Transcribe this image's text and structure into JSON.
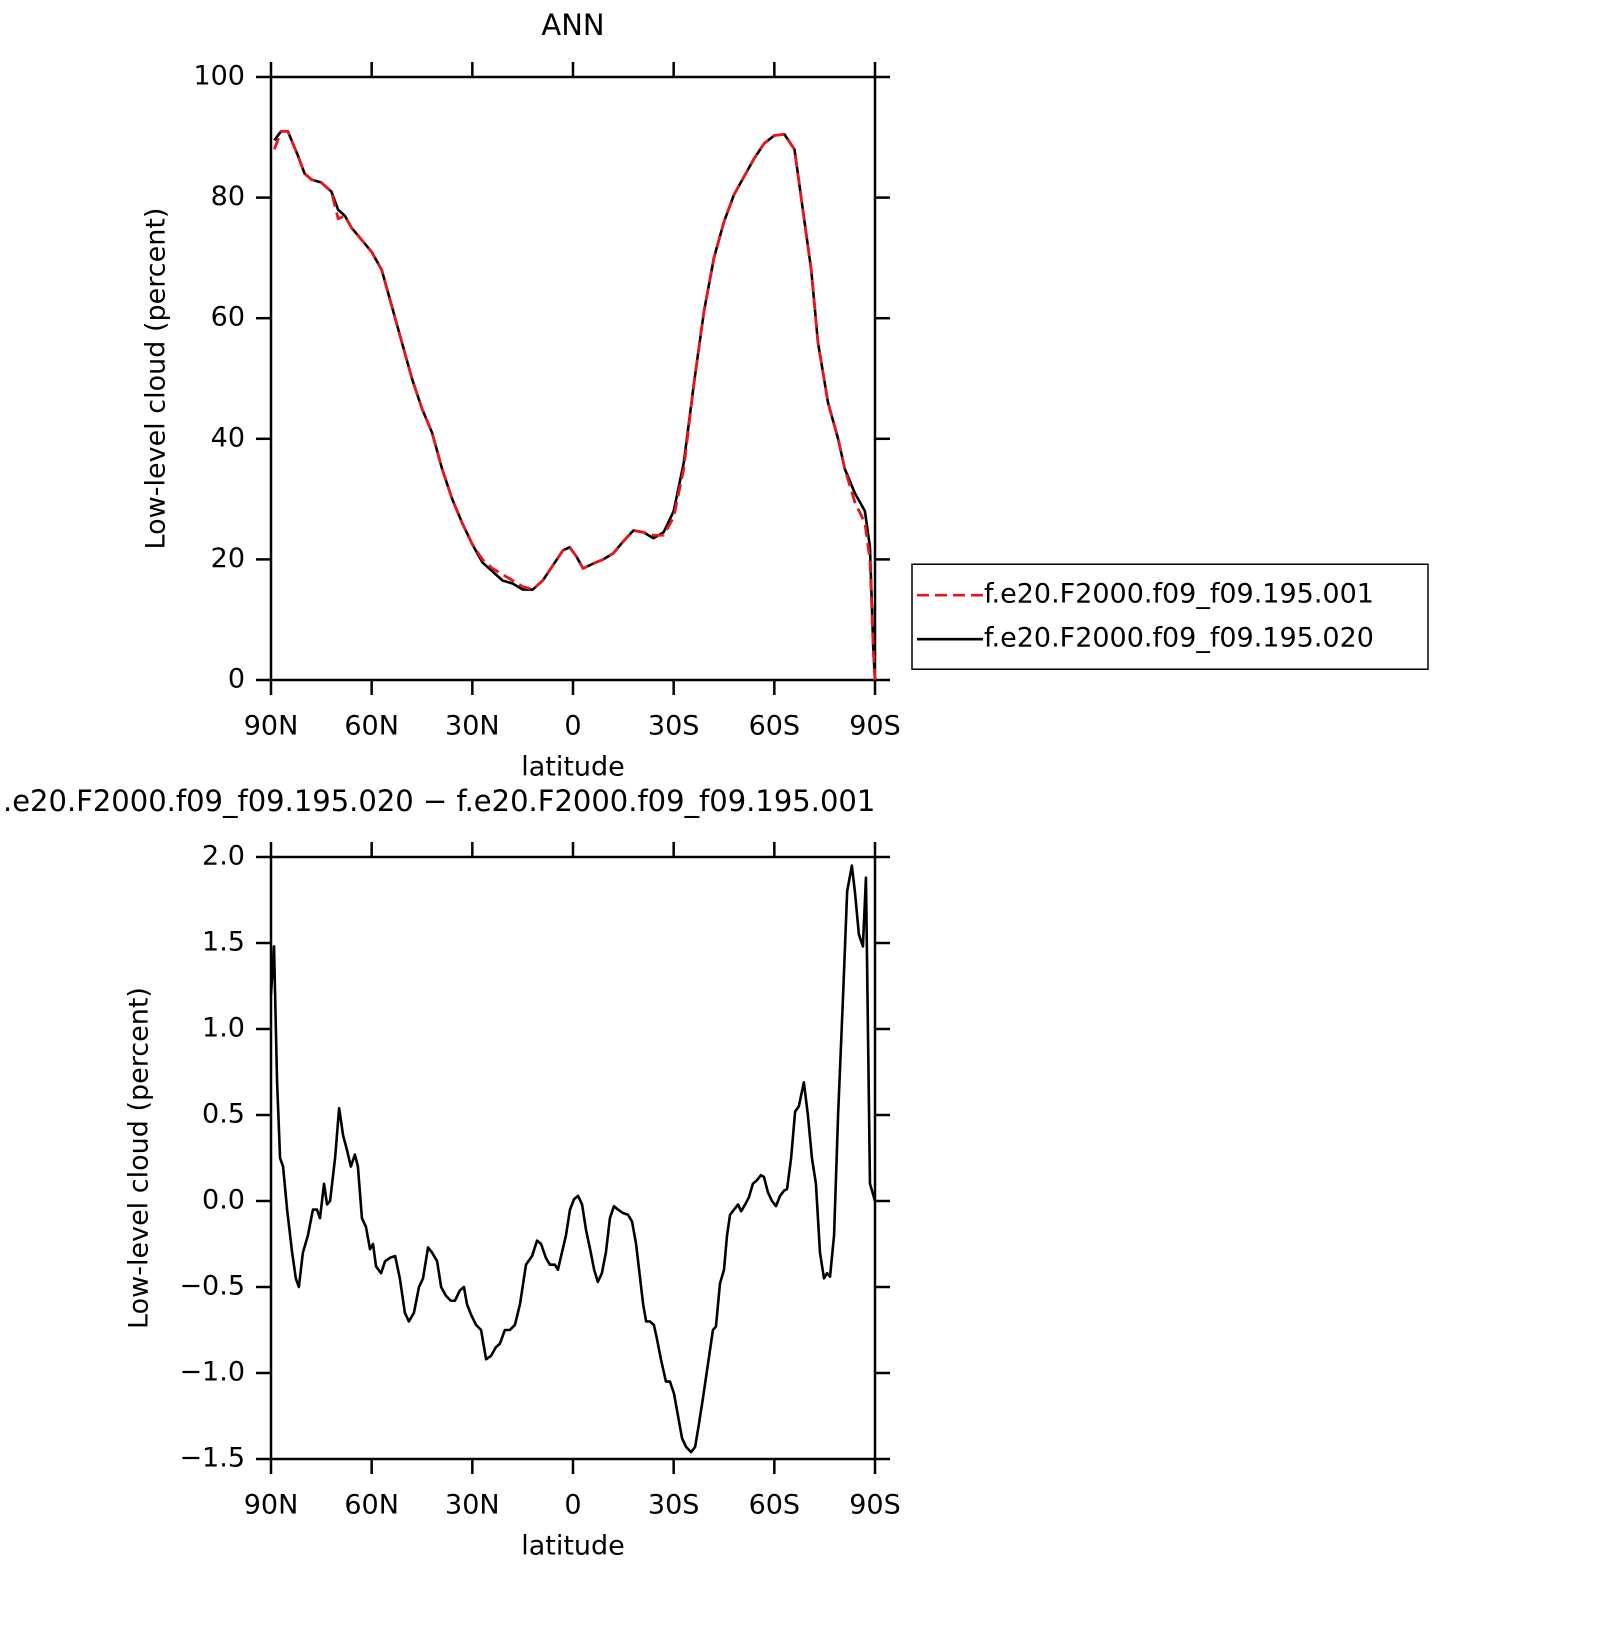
{
  "chart_data": [
    {
      "type": "line",
      "title": "ANN",
      "xlabel": "latitude",
      "ylabel": "Low-level cloud (percent)",
      "xlim": [
        90,
        -90
      ],
      "xticks": [
        {
          "value": 90,
          "label": "90N"
        },
        {
          "value": 60,
          "label": "60N"
        },
        {
          "value": 30,
          "label": "30N"
        },
        0,
        {
          "value": -30,
          "label": "30S"
        },
        {
          "value": -60,
          "label": "60S"
        },
        {
          "value": -90,
          "label": "90S"
        }
      ],
      "ylim": [
        0,
        100
      ],
      "yticks": [
        0,
        20,
        40,
        60,
        80,
        100
      ],
      "legend": "right",
      "x": [
        89,
        87,
        85,
        82,
        80,
        78,
        75,
        72,
        70,
        68,
        66,
        63,
        60,
        57,
        54,
        51,
        48,
        45,
        42,
        39,
        36,
        33,
        30,
        27,
        24,
        21,
        18,
        15,
        12,
        9,
        6,
        3,
        1,
        -1,
        -3,
        -6,
        -9,
        -12,
        -15,
        -18,
        -21,
        -24,
        -27,
        -30,
        -33,
        -36,
        -39,
        -42,
        -45,
        -48,
        -51,
        -54,
        -57,
        -60,
        -63,
        -66,
        -69,
        -71,
        -73,
        -76,
        -79,
        -81,
        -84,
        -87,
        -88.5,
        -89.5,
        -90
      ],
      "series": [
        {
          "name": "f.e20.F2000.f09_f09.195.001",
          "color": "#e8161b",
          "dashed": true,
          "values": [
            88,
            91,
            91,
            87,
            84,
            83,
            82.5,
            81,
            76.5,
            77,
            75,
            73,
            71,
            68,
            62,
            56,
            50,
            45,
            41,
            35,
            30,
            26,
            22.5,
            20,
            18.5,
            17.5,
            16.5,
            15.5,
            15,
            16.5,
            19,
            21.5,
            22,
            20.5,
            18.5,
            19.3,
            20,
            21,
            23,
            24.8,
            24.5,
            24,
            24,
            27,
            35,
            49,
            61,
            70,
            76,
            80.5,
            83.5,
            86.5,
            89,
            90.3,
            90.5,
            88,
            76,
            68,
            56,
            46,
            40,
            35,
            29.5,
            26,
            20,
            5,
            0
          ]
        },
        {
          "name": "f.e20.F2000.f09_f09.195.020",
          "color": "#000000",
          "dashed": false,
          "values": [
            89.5,
            91,
            91,
            87,
            84,
            83,
            82.5,
            81,
            78,
            77,
            75,
            73,
            71,
            68,
            62,
            56,
            50,
            45,
            41,
            35,
            30,
            26,
            22.5,
            19.5,
            18,
            16.5,
            16,
            15,
            15,
            16.5,
            19,
            21.5,
            22,
            20.5,
            18.5,
            19.3,
            20,
            21,
            23,
            24.8,
            24.5,
            23.5,
            24.5,
            28,
            36,
            49,
            61,
            70,
            76,
            80.5,
            83.5,
            86.5,
            89,
            90.3,
            90.5,
            88,
            76,
            68,
            56,
            46,
            40,
            35,
            31,
            28,
            22,
            5,
            0
          ]
        }
      ]
    },
    {
      "type": "line",
      "title": ".e20.F2000.f09_f09.195.020 − f.e20.F2000.f09_f09.195.001",
      "xlabel": "latitude",
      "ylabel": "Low-level cloud (percent)",
      "xlim": [
        90,
        -90
      ],
      "xticks": [
        {
          "value": 90,
          "label": "90N"
        },
        {
          "value": 60,
          "label": "60N"
        },
        {
          "value": 30,
          "label": "30N"
        },
        0,
        {
          "value": -30,
          "label": "30S"
        },
        {
          "value": -60,
          "label": "60S"
        },
        {
          "value": -90,
          "label": "90S"
        }
      ],
      "ylim": [
        -1.5,
        2.0
      ],
      "yticks": [
        {
          "value": -1.5,
          "label": "−1.5"
        },
        {
          "value": -1.0,
          "label": "−1.0"
        },
        {
          "value": -0.5,
          "label": "−0.5"
        },
        {
          "value": 0,
          "label": "0.0"
        },
        0.5,
        {
          "value": 1.0,
          "label": "1.0"
        },
        1.5,
        {
          "value": 2.0,
          "label": "2.0"
        }
      ],
      "x": [
        90,
        89.1,
        88.2,
        87.3,
        86.4,
        85.2,
        83.7,
        82.6,
        81.7,
        80.5,
        79.0,
        77.5,
        76.3,
        75.4,
        74.2,
        73.3,
        72.4,
        70.9,
        69.7,
        68.5,
        67.4,
        66.2,
        65.0,
        64.1,
        62.9,
        61.7,
        60.5,
        59.6,
        58.7,
        57.2,
        56.0,
        54.5,
        53.0,
        51.6,
        50.1,
        48.9,
        47.4,
        45.9,
        44.7,
        43.2,
        42.0,
        40.5,
        39.3,
        37.9,
        36.4,
        35.2,
        33.7,
        32.5,
        31.6,
        30.4,
        28.9,
        27.4,
        25.9,
        24.4,
        23.0,
        21.8,
        20.3,
        18.8,
        17.3,
        15.8,
        14.0,
        12.2,
        10.7,
        9.5,
        8.1,
        6.9,
        5.4,
        4.5,
        3.3,
        2.1,
        0.9,
        -0.3,
        -1.5,
        -2.7,
        -3.9,
        -5.1,
        -6.3,
        -7.4,
        -8.6,
        -9.8,
        -11.0,
        -12.2,
        -13.4,
        -14.9,
        -16.4,
        -17.6,
        -18.8,
        -20.0,
        -20.9,
        -21.8,
        -22.9,
        -24.1,
        -25.0,
        -26.2,
        -27.7,
        -28.9,
        -30.1,
        -31.3,
        -32.5,
        -33.7,
        -35.2,
        -36.4,
        -37.5,
        -38.7,
        -40.2,
        -41.7,
        -42.6,
        -43.8,
        -45.0,
        -45.9,
        -46.8,
        -48.0,
        -49.2,
        -50.1,
        -51.3,
        -52.4,
        -53.6,
        -54.8,
        -56.0,
        -56.9,
        -58.1,
        -59.3,
        -60.5,
        -61.7,
        -62.9,
        -63.8,
        -65.0,
        -66.2,
        -67.3,
        -68.8,
        -70.0,
        -71.2,
        -72.4,
        -73.6,
        -74.8,
        -75.7,
        -76.6,
        -77.8,
        -79.0,
        -80.5,
        -81.7,
        -83.1,
        -84.0,
        -85.2,
        -86.4,
        -87.3,
        -88.5,
        -90
      ],
      "color": "#000000",
      "values": [
        1.2,
        1.48,
        0.7,
        0.25,
        0.2,
        -0.05,
        -0.3,
        -0.45,
        -0.5,
        -0.3,
        -0.2,
        -0.05,
        -0.05,
        -0.1,
        0.1,
        -0.02,
        0.0,
        0.25,
        0.54,
        0.38,
        0.3,
        0.2,
        0.27,
        0.2,
        -0.1,
        -0.15,
        -0.28,
        -0.25,
        -0.38,
        -0.42,
        -0.35,
        -0.33,
        -0.32,
        -0.45,
        -0.65,
        -0.7,
        -0.65,
        -0.5,
        -0.45,
        -0.27,
        -0.3,
        -0.35,
        -0.5,
        -0.55,
        -0.58,
        -0.58,
        -0.52,
        -0.5,
        -0.6,
        -0.66,
        -0.72,
        -0.75,
        -0.92,
        -0.9,
        -0.85,
        -0.83,
        -0.75,
        -0.75,
        -0.72,
        -0.6,
        -0.37,
        -0.32,
        -0.23,
        -0.25,
        -0.33,
        -0.37,
        -0.37,
        -0.4,
        -0.3,
        -0.2,
        -0.05,
        0.01,
        0.03,
        -0.02,
        -0.17,
        -0.28,
        -0.4,
        -0.47,
        -0.42,
        -0.3,
        -0.1,
        -0.03,
        -0.05,
        -0.07,
        -0.08,
        -0.12,
        -0.25,
        -0.45,
        -0.6,
        -0.7,
        -0.7,
        -0.72,
        -0.8,
        -0.92,
        -1.05,
        -1.05,
        -1.12,
        -1.25,
        -1.38,
        -1.43,
        -1.46,
        -1.43,
        -1.3,
        -1.15,
        -0.95,
        -0.75,
        -0.73,
        -0.48,
        -0.4,
        -0.2,
        -0.08,
        -0.05,
        -0.02,
        -0.06,
        -0.02,
        0.02,
        0.1,
        0.12,
        0.15,
        0.14,
        0.05,
        0.0,
        -0.03,
        0.03,
        0.06,
        0.07,
        0.25,
        0.52,
        0.55,
        0.69,
        0.5,
        0.25,
        0.1,
        -0.3,
        -0.45,
        -0.42,
        -0.44,
        -0.2,
        0.5,
        1.2,
        1.8,
        1.95,
        1.8,
        1.55,
        1.48,
        1.88,
        0.1,
        0.0
      ]
    }
  ]
}
